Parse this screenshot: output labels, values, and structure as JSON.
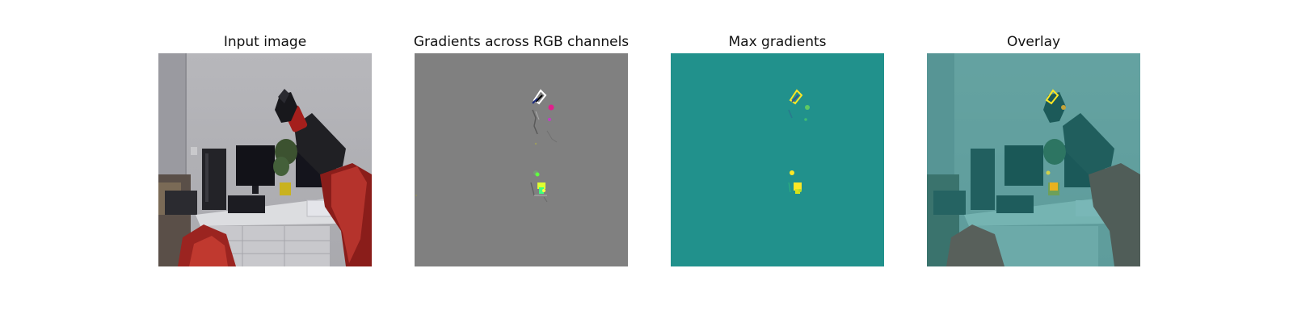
{
  "panels": [
    {
      "title": "Input image"
    },
    {
      "title": "Gradients across RGB channels"
    },
    {
      "title": "Max gradients"
    },
    {
      "title": "Overlay"
    }
  ],
  "colors": {
    "gradient_background": "#808080",
    "max_gradient_background": "#21918c",
    "max_gradient_high": "#fde725",
    "overlay_tint": "#21918c"
  }
}
